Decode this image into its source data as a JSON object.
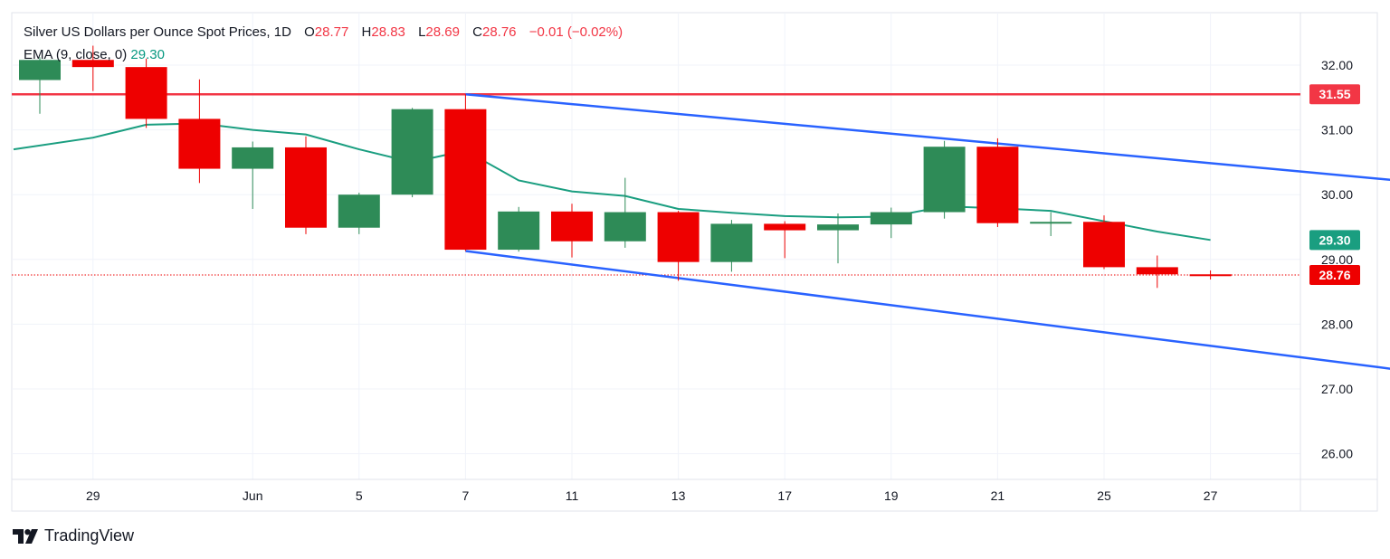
{
  "legend": {
    "title": "Silver US Dollars per Ounce Spot Prices, 1D",
    "open_label": "O",
    "open": "28.77",
    "high_label": "H",
    "high": "28.83",
    "low_label": "L",
    "low": "28.69",
    "close_label": "C",
    "close": "28.76",
    "change": "−0.01 (−0.02%)",
    "ema_label": "EMA (9, close, 0)",
    "ema_value": "29.30"
  },
  "watermark": "TradingView",
  "colors": {
    "up": "#2e8b57",
    "down": "#ee0000",
    "ema": "#1a9e80",
    "trend": "#2962ff",
    "resistance": "#f23645",
    "grid": "#f0f3fa",
    "axis_text": "#131722"
  },
  "chart_data": {
    "type": "candlestick",
    "title": "Silver US Dollars per Ounce Spot Prices, 1D",
    "ylim": [
      25.6,
      32.5
    ],
    "y_ticks": [
      "26.00",
      "27.00",
      "28.00",
      "29.00",
      "30.00",
      "31.00",
      "32.00"
    ],
    "x_ticks": [
      "29",
      "Jun",
      "5",
      "7",
      "11",
      "13",
      "17",
      "19",
      "21",
      "25",
      "27"
    ],
    "grid": true,
    "candles": [
      {
        "date": "May 28",
        "o": 31.77,
        "h": 32.12,
        "l": 31.25,
        "c": 32.08
      },
      {
        "date": "May 29",
        "o": 32.08,
        "h": 32.3,
        "l": 31.6,
        "c": 31.97
      },
      {
        "date": "May 30",
        "o": 31.97,
        "h": 32.1,
        "l": 31.03,
        "c": 31.17
      },
      {
        "date": "May 31",
        "o": 31.17,
        "h": 31.78,
        "l": 30.18,
        "c": 30.4
      },
      {
        "date": "Jun 3",
        "o": 30.4,
        "h": 30.82,
        "l": 29.78,
        "c": 30.73
      },
      {
        "date": "Jun 4",
        "o": 30.73,
        "h": 30.9,
        "l": 29.39,
        "c": 29.49
      },
      {
        "date": "Jun 5",
        "o": 29.49,
        "h": 30.03,
        "l": 29.39,
        "c": 30.0
      },
      {
        "date": "Jun 6",
        "o": 30.0,
        "h": 31.34,
        "l": 29.96,
        "c": 31.32
      },
      {
        "date": "Jun 7",
        "o": 31.32,
        "h": 31.55,
        "l": 29.13,
        "c": 29.15
      },
      {
        "date": "Jun 10",
        "o": 29.15,
        "h": 29.81,
        "l": 29.12,
        "c": 29.74
      },
      {
        "date": "Jun 11",
        "o": 29.74,
        "h": 29.86,
        "l": 29.03,
        "c": 29.28
      },
      {
        "date": "Jun 12",
        "o": 29.28,
        "h": 30.26,
        "l": 29.18,
        "c": 29.73
      },
      {
        "date": "Jun 13",
        "o": 29.73,
        "h": 29.75,
        "l": 28.67,
        "c": 28.96
      },
      {
        "date": "Jun 14",
        "o": 28.96,
        "h": 29.61,
        "l": 28.81,
        "c": 29.55
      },
      {
        "date": "Jun 17",
        "o": 29.55,
        "h": 29.59,
        "l": 29.02,
        "c": 29.45
      },
      {
        "date": "Jun 18",
        "o": 29.45,
        "h": 29.71,
        "l": 28.94,
        "c": 29.54
      },
      {
        "date": "Jun 19",
        "o": 29.54,
        "h": 29.8,
        "l": 29.33,
        "c": 29.73
      },
      {
        "date": "Jun 20",
        "o": 29.73,
        "h": 30.83,
        "l": 29.63,
        "c": 30.74
      },
      {
        "date": "Jun 21",
        "o": 30.74,
        "h": 30.87,
        "l": 29.5,
        "c": 29.56
      },
      {
        "date": "Jun 24",
        "o": 29.56,
        "h": 29.73,
        "l": 29.36,
        "c": 29.58
      },
      {
        "date": "Jun 25",
        "o": 29.58,
        "h": 29.68,
        "l": 28.85,
        "c": 28.88
      },
      {
        "date": "Jun 26",
        "o": 28.88,
        "h": 29.06,
        "l": 28.56,
        "c": 28.77
      },
      {
        "date": "Jun 27",
        "o": 28.77,
        "h": 28.83,
        "l": 28.69,
        "c": 28.76
      }
    ],
    "ema": {
      "name": "EMA (9, close, 0)",
      "values": [
        30.7,
        30.88,
        31.08,
        31.1,
        31.0,
        30.93,
        30.7,
        30.5,
        30.68,
        30.22,
        30.05,
        29.98,
        29.78,
        29.72,
        29.67,
        29.65,
        29.66,
        29.82,
        29.79,
        29.75,
        29.59,
        29.43,
        29.3
      ]
    },
    "resistance": {
      "value": 31.55,
      "label": "31.55"
    },
    "channel": {
      "upper": {
        "from": {
          "date": "Jun 7",
          "value": 31.55
        },
        "to": {
          "date": "Jul 1",
          "value": 30.22
        }
      },
      "lower": {
        "from": {
          "date": "Jun 7",
          "value": 29.13
        },
        "to": {
          "date": "Jul 1",
          "value": 27.3
        }
      }
    },
    "price_labels": [
      {
        "name": "ema",
        "value": 29.3,
        "label": "29.30"
      },
      {
        "name": "last-close",
        "value": 28.76,
        "label": "28.76"
      }
    ]
  }
}
